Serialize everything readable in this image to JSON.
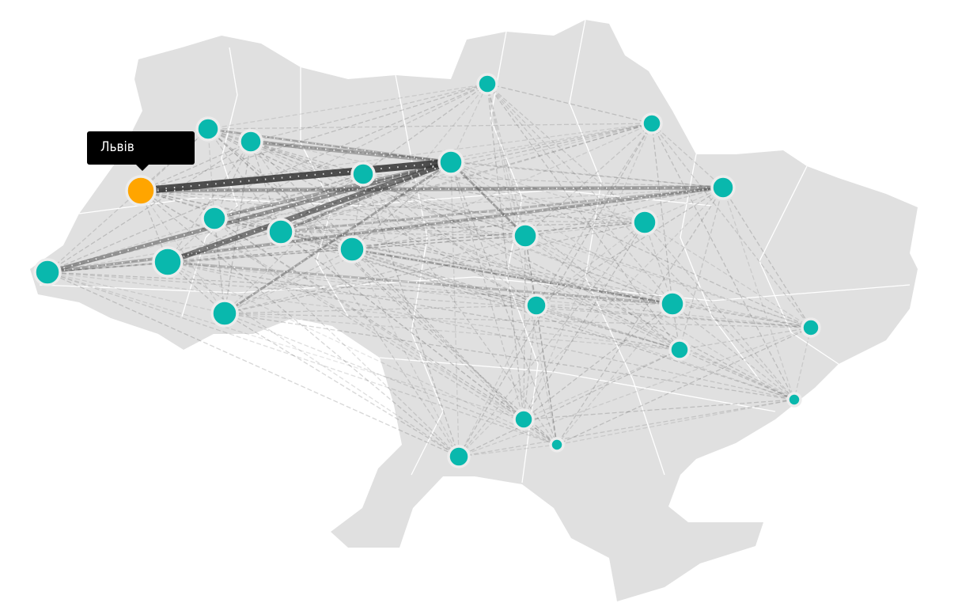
{
  "map": {
    "country_fill": "#e0e0e0",
    "border_color": "#ffffff",
    "node_color": "#09b8ad",
    "selected_node_color": "#ffa500",
    "node_stroke": "#ececec",
    "edge_color": "#333333"
  },
  "tooltip": {
    "label": "Львів"
  }
}
